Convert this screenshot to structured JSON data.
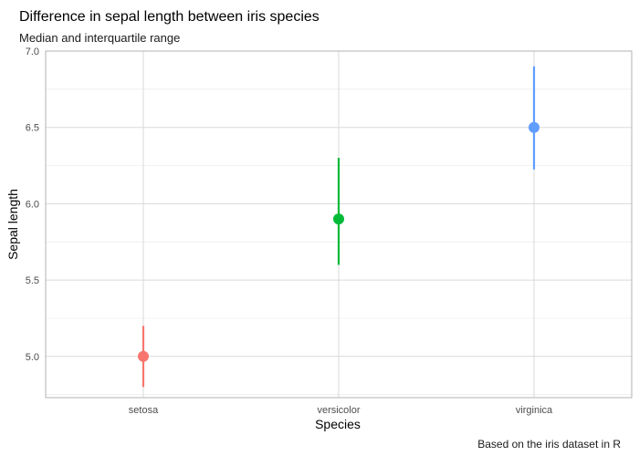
{
  "chart_data": {
    "type": "pointrange",
    "title": "Difference in sepal length between iris species",
    "subtitle": "Median and interquartile range",
    "caption": "Based on the iris dataset in R",
    "xlabel": "Species",
    "ylabel": "Sepal length",
    "ylim": [
      4.73,
      7.0
    ],
    "yticks": [
      5.0,
      5.5,
      6.0,
      6.5,
      7.0
    ],
    "ytick_labels": [
      "5.0",
      "5.5",
      "6.0",
      "6.5",
      "7.0"
    ],
    "grid": true,
    "legend": "none",
    "categories": [
      "setosa",
      "versicolor",
      "virginica"
    ],
    "series": [
      {
        "category": "setosa",
        "median": 5.0,
        "q1": 4.8,
        "q3": 5.2,
        "color": "#F8766D"
      },
      {
        "category": "versicolor",
        "median": 5.9,
        "q1": 5.6,
        "q3": 6.3,
        "color": "#00BA38"
      },
      {
        "category": "virginica",
        "median": 6.5,
        "q1": 6.225,
        "q3": 6.9,
        "color": "#619CFF"
      }
    ]
  }
}
